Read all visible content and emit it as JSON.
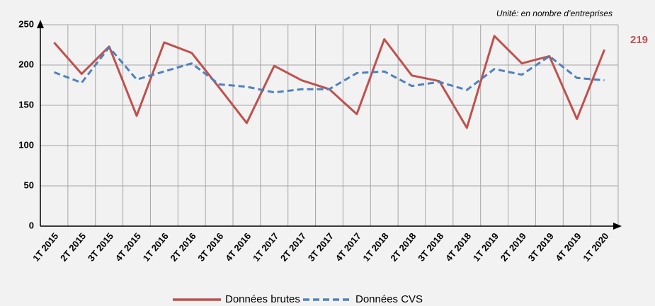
{
  "chart_data": {
    "type": "line",
    "subtitle": "Unité: en nombre d’entreprises",
    "categories": [
      "1T 2015",
      "2T 2015",
      "3T 2015",
      "4T 2015",
      "1T 2016",
      "2T 2016",
      "3T 2016",
      "4T 2016",
      "1T 2017",
      "2T 2017",
      "3T 2017",
      "4T 2017",
      "1T 2018",
      "2T 2018",
      "3T 2018",
      "4T 2018",
      "1T 2019",
      "2T 2019",
      "3T 2019",
      "4T 2019",
      "1T 2020"
    ],
    "series": [
      {
        "name": "Données brutes",
        "color": "#c0504d",
        "dash": false,
        "values": [
          228,
          189,
          223,
          137,
          228,
          215,
          172,
          128,
          199,
          181,
          170,
          139,
          232,
          187,
          180,
          122,
          236,
          202,
          211,
          133,
          219
        ]
      },
      {
        "name": "Données CVS",
        "color": "#4f81bd",
        "dash": true,
        "values": [
          191,
          178,
          222,
          182,
          192,
          202,
          176,
          173,
          166,
          170,
          170,
          190,
          192,
          174,
          179,
          169,
          195,
          188,
          211,
          184,
          181
        ]
      }
    ],
    "ylim": [
      0,
      250
    ],
    "yticks": [
      0,
      50,
      100,
      150,
      200,
      250
    ],
    "grid": true
  }
}
